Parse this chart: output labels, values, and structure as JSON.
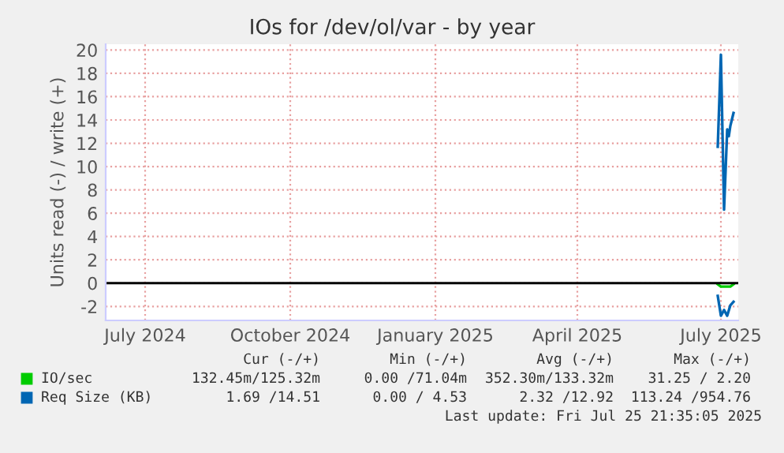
{
  "chart_data": {
    "type": "line",
    "title": "IOs for /dev/ol/var - by year",
    "ylabel": "Units read (-) / write (+)",
    "xlim": [
      "2024-06-06",
      "2025-07-12"
    ],
    "xticks": [
      {
        "value": "2024-07-01",
        "label": "July 2024"
      },
      {
        "value": "2024-10-01",
        "label": "October 2024"
      },
      {
        "value": "2025-01-01",
        "label": "January 2025"
      },
      {
        "value": "2025-04-01",
        "label": "April 2025"
      },
      {
        "value": "2025-07-01",
        "label": "July 2025"
      }
    ],
    "ylim": [
      -3.2,
      20.5
    ],
    "yticks": [
      -2,
      0,
      2,
      4,
      6,
      8,
      10,
      12,
      14,
      16,
      18,
      20
    ],
    "grid": true,
    "legend": "bottom",
    "series": [
      {
        "name": "IO/sec",
        "color": "#00cc00",
        "x": [
          "2025-06-29",
          "2025-07-01",
          "2025-07-03",
          "2025-07-05",
          "2025-07-07",
          "2025-07-09"
        ],
        "values": [
          -0.1,
          -0.3,
          -0.3,
          -0.3,
          -0.3,
          -0.1
        ]
      },
      {
        "name": "Req Size (KB)",
        "color": "#0066b3",
        "x": [
          "2025-06-29",
          "2025-07-01",
          "2025-07-03",
          "2025-07-05",
          "2025-07-06",
          "2025-07-07",
          "2025-07-09"
        ],
        "values": [
          11.7,
          19.6,
          6.3,
          13.2,
          12.6,
          13.5,
          14.6
        ]
      },
      {
        "color": "#0066b3",
        "x": [
          "2025-06-29",
          "2025-07-01",
          "2025-07-03",
          "2025-07-05",
          "2025-07-07",
          "2025-07-09"
        ],
        "values": [
          -1.1,
          -2.8,
          -2.3,
          -2.8,
          -1.9,
          -1.6
        ]
      }
    ],
    "annotations": [
      "Cur (-/+)",
      "Min (-/+)",
      "Avg (-/+)",
      "Max (-/+)",
      "132.45m/125.32m",
      "0.00 /71.04m",
      "352.30m/133.32m",
      "31.25 / 2.20",
      "1.69 /14.51",
      "0.00 / 4.53",
      "2.32 /12.92",
      "113.24 /954.76",
      "Last update: Fri Jul 25 21:35:05 2025"
    ]
  }
}
